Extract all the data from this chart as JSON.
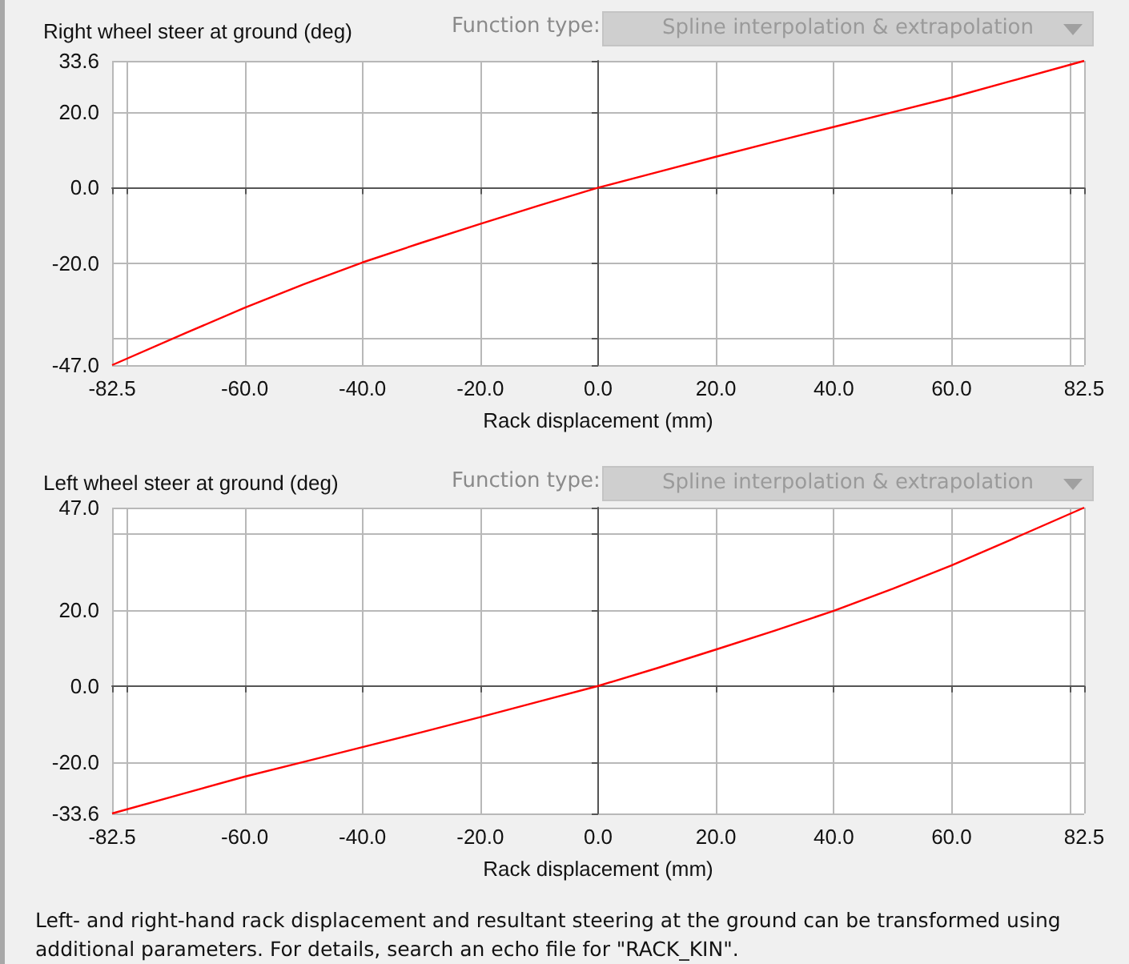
{
  "chart_data": [
    {
      "type": "line",
      "title": "Right wheel steer at ground (deg)",
      "xlabel": "Rack displacement (mm)",
      "annotations": [
        "Function type:",
        "Spline interpolation & extrapolation"
      ],
      "x": [
        -82.5,
        -70,
        -60,
        -50,
        -40,
        -30,
        -20,
        -10,
        0,
        10,
        20,
        30,
        40,
        50,
        60,
        70,
        82.5
      ],
      "series": [
        {
          "color": "#ff0000",
          "values": [
            -47,
            -38.5,
            -31.8,
            -25.6,
            -19.8,
            -14.6,
            -9.6,
            -4.7,
            0,
            4.1,
            8.2,
            12.2,
            16.1,
            20,
            23.9,
            28.2,
            33.6
          ]
        }
      ],
      "xlim": [
        -82.5,
        82.5
      ],
      "ylim": [
        -47,
        33.6
      ],
      "xticks": [
        {
          "value": -82.5,
          "label": "-82.5"
        },
        {
          "value": -80,
          "label": null
        },
        {
          "value": -60,
          "label": "-60.0"
        },
        {
          "value": -40,
          "label": "-40.0"
        },
        {
          "value": -20,
          "label": "-20.0"
        },
        {
          "value": 0,
          "label": "0.0"
        },
        {
          "value": 20,
          "label": "20.0"
        },
        {
          "value": 40,
          "label": "40.0"
        },
        {
          "value": 60,
          "label": "60.0"
        },
        {
          "value": 80,
          "label": null
        },
        {
          "value": 82.5,
          "label": "82.5"
        }
      ],
      "yticks": [
        {
          "value": -47,
          "label": "-47.0"
        },
        {
          "value": -40,
          "label": null
        },
        {
          "value": -20,
          "label": "-20.0"
        },
        {
          "value": 0,
          "label": "0.0"
        },
        {
          "value": 20,
          "label": "20.0"
        },
        {
          "value": 33.6,
          "label": "33.6"
        }
      ],
      "grid": true,
      "marker": "none"
    },
    {
      "type": "line",
      "title": "Left wheel steer at ground (deg)",
      "xlabel": "Rack displacement (mm)",
      "annotations": [
        "Function type:",
        "Spline interpolation & extrapolation",
        "Left- and right-hand rack displacement and resultant steering at the ground can be transformed using additional parameters. For details, search an echo file for \"RACK_KIN\"."
      ],
      "x": [
        -82.5,
        -70,
        -60,
        -50,
        -40,
        -30,
        -20,
        -10,
        0,
        10,
        20,
        30,
        40,
        50,
        60,
        70,
        82.5
      ],
      "series": [
        {
          "color": "#ff0000",
          "values": [
            -33.6,
            -28.2,
            -23.9,
            -20,
            -16.1,
            -12.2,
            -8.2,
            -4.1,
            0,
            4.7,
            9.6,
            14.6,
            19.8,
            25.6,
            31.8,
            38.5,
            47
          ]
        }
      ],
      "xlim": [
        -82.5,
        82.5
      ],
      "ylim": [
        -33.6,
        47
      ],
      "xticks": [
        {
          "value": -82.5,
          "label": "-82.5"
        },
        {
          "value": -80,
          "label": null
        },
        {
          "value": -60,
          "label": "-60.0"
        },
        {
          "value": -40,
          "label": "-40.0"
        },
        {
          "value": -20,
          "label": "-20.0"
        },
        {
          "value": 0,
          "label": "0.0"
        },
        {
          "value": 20,
          "label": "20.0"
        },
        {
          "value": 40,
          "label": "40.0"
        },
        {
          "value": 60,
          "label": "60.0"
        },
        {
          "value": 80,
          "label": null
        },
        {
          "value": 82.5,
          "label": "82.5"
        }
      ],
      "yticks": [
        {
          "value": -33.6,
          "label": "-33.6"
        },
        {
          "value": -20,
          "label": "-20.0"
        },
        {
          "value": 0,
          "label": "0.0"
        },
        {
          "value": 20,
          "label": "20.0"
        },
        {
          "value": 40,
          "label": null
        },
        {
          "value": 47,
          "label": "47.0"
        }
      ],
      "grid": true,
      "marker": "none"
    }
  ]
}
